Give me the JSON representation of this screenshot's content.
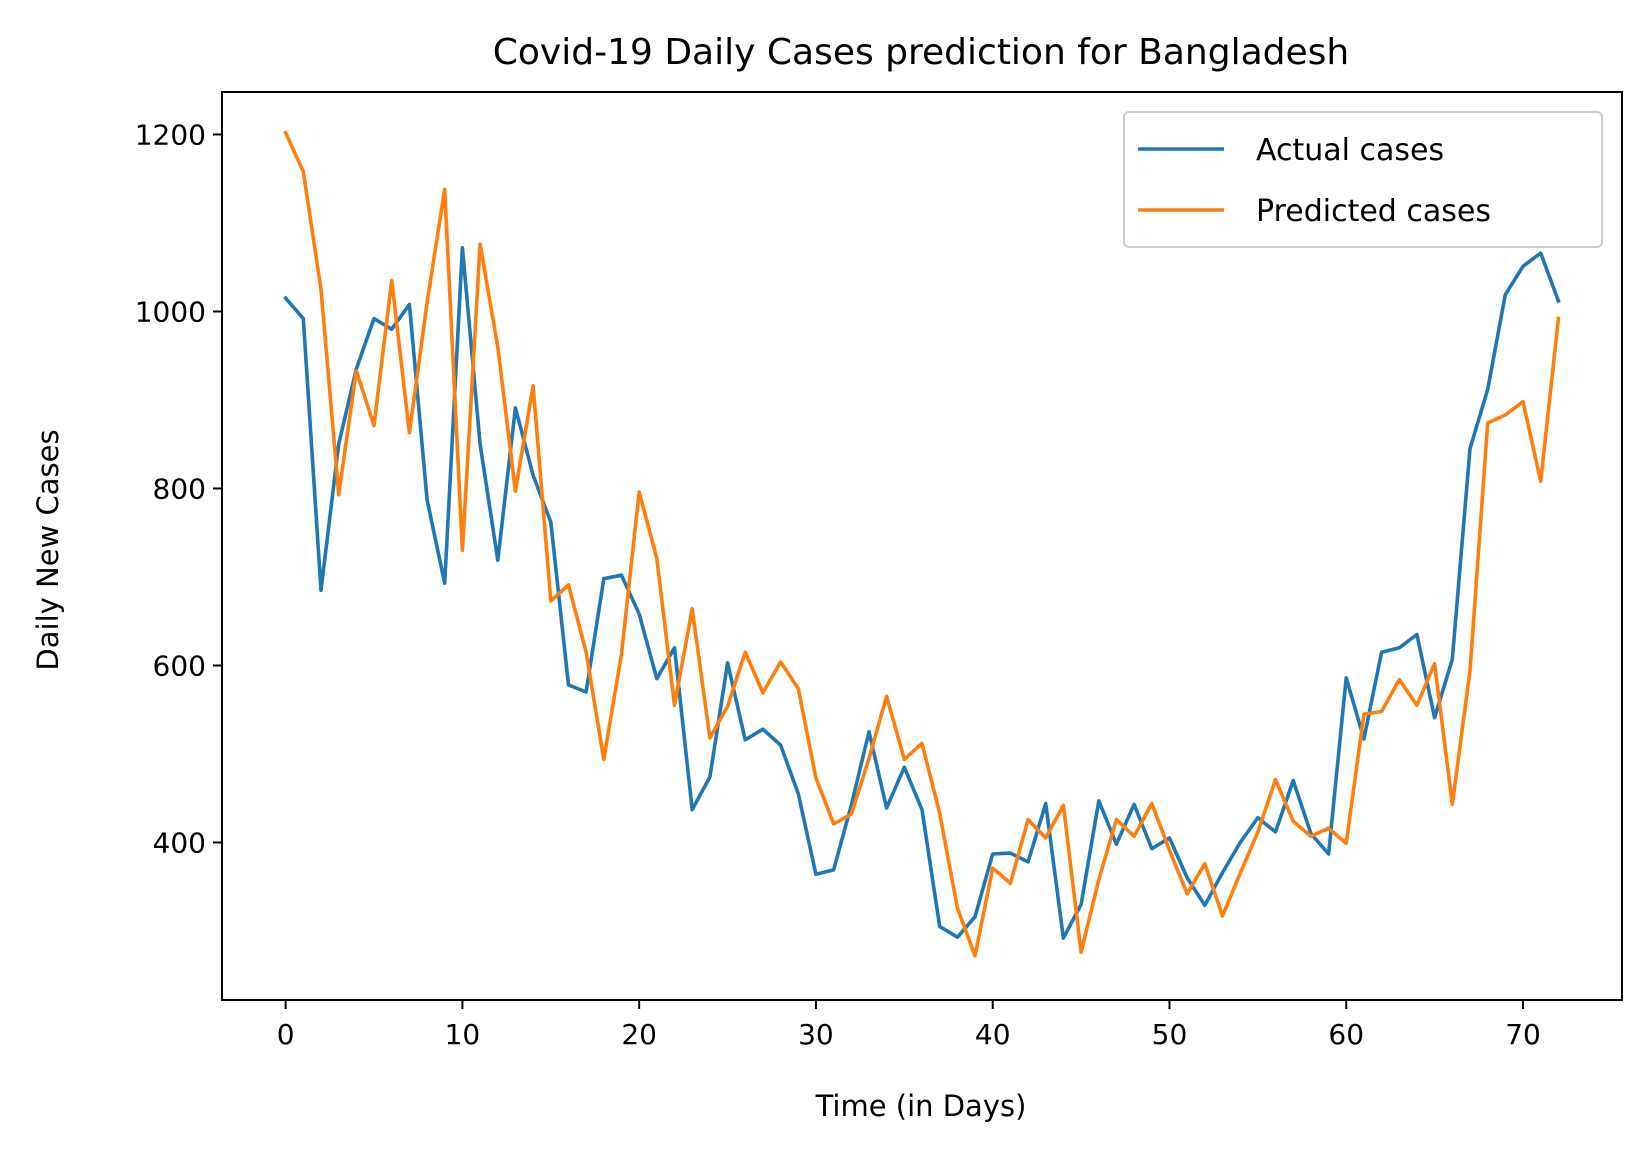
{
  "chart_data": {
    "type": "line",
    "title": "Covid-19 Daily Cases prediction for Bangladesh",
    "xlabel": "Time (in Days)",
    "ylabel": "Daily New Cases",
    "xlim": [
      -3.6,
      75.6
    ],
    "ylim": [
      222,
      1248
    ],
    "xticks": [
      0,
      10,
      20,
      30,
      40,
      50,
      60,
      70
    ],
    "yticks": [
      400,
      600,
      800,
      1000,
      1200
    ],
    "grid": false,
    "legend_position": "top-right",
    "series": [
      {
        "name": "Actual cases",
        "color": "#1f77b4",
        "x": [
          0,
          1,
          2,
          3,
          4,
          5,
          6,
          7,
          8,
          9,
          10,
          11,
          12,
          13,
          14,
          15,
          16,
          17,
          18,
          19,
          20,
          21,
          22,
          23,
          24,
          25,
          26,
          27,
          28,
          29,
          30,
          31,
          32,
          33,
          34,
          35,
          36,
          37,
          38,
          39,
          40,
          41,
          42,
          43,
          44,
          45,
          46,
          47,
          48,
          49,
          50,
          51,
          52,
          53,
          54,
          55,
          56,
          57,
          58,
          59,
          60,
          61,
          62,
          63,
          64,
          65,
          66,
          67,
          68,
          69,
          70,
          71,
          72
        ],
        "values": [
          1015,
          992,
          685,
          850,
          935,
          992,
          980,
          1008,
          787,
          693,
          1072,
          850,
          719,
          891,
          815,
          762,
          578,
          570,
          698,
          702,
          658,
          585,
          620,
          437,
          474,
          603,
          516,
          528,
          510,
          455,
          364,
          369,
          442,
          525,
          439,
          485,
          437,
          305,
          293,
          316,
          387,
          388,
          378,
          444,
          292,
          330,
          447,
          398,
          443,
          393,
          405,
          360,
          329,
          366,
          400,
          428,
          412,
          470,
          410,
          387,
          586,
          517,
          615,
          620,
          635,
          541,
          607,
          845,
          912,
          1019,
          1051,
          1066,
          1012
        ]
      },
      {
        "name": "Predicted cases",
        "color": "#ff7f0e",
        "x": [
          0,
          1,
          2,
          3,
          4,
          5,
          6,
          7,
          8,
          9,
          10,
          11,
          12,
          13,
          14,
          15,
          16,
          17,
          18,
          19,
          20,
          21,
          22,
          23,
          24,
          25,
          26,
          27,
          28,
          29,
          30,
          31,
          32,
          33,
          34,
          35,
          36,
          37,
          38,
          39,
          40,
          41,
          42,
          43,
          44,
          45,
          46,
          47,
          48,
          49,
          50,
          51,
          52,
          53,
          54,
          55,
          56,
          57,
          58,
          59,
          60,
          61,
          62,
          63,
          64,
          65,
          66,
          67,
          68,
          69,
          70,
          71,
          72
        ],
        "values": [
          1202,
          1158,
          1025,
          793,
          933,
          871,
          1035,
          863,
          1010,
          1138,
          730,
          1076,
          960,
          797,
          916,
          673,
          691,
          615,
          494,
          613,
          796,
          721,
          555,
          664,
          518,
          554,
          615,
          569,
          604,
          574,
          473,
          421,
          432,
          495,
          565,
          494,
          512,
          433,
          326,
          272,
          371,
          354,
          426,
          405,
          442,
          276,
          358,
          426,
          407,
          444,
          391,
          342,
          376,
          317,
          365,
          412,
          471,
          424,
          407,
          416,
          399,
          545,
          548,
          584,
          555,
          602,
          443,
          594,
          874,
          883,
          898,
          808,
          992
        ]
      }
    ]
  }
}
